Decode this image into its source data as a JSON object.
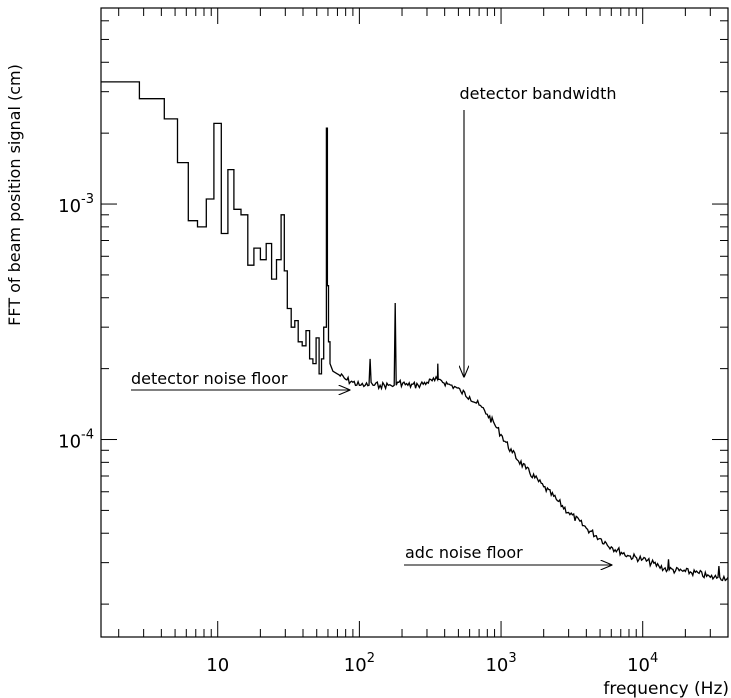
{
  "chart_data": {
    "type": "line",
    "title": "",
    "xlabel": "frequency (Hz)",
    "ylabel": "FFT of beam position signal (cm)",
    "x_scale": "log",
    "y_scale": "log",
    "xlim": [
      1.5,
      40000
    ],
    "ylim": [
      1.45e-05,
      0.0068
    ],
    "grid": false,
    "x_ticks": [
      {
        "value": 10,
        "base": "10",
        "exp": ""
      },
      {
        "value": 100,
        "base": "10",
        "exp": "2"
      },
      {
        "value": 1000,
        "base": "10",
        "exp": "3"
      },
      {
        "value": 10000,
        "base": "10",
        "exp": "4"
      }
    ],
    "y_ticks": [
      {
        "value": 0.001,
        "base": "10",
        "exp": "-3"
      },
      {
        "value": 0.0001,
        "base": "10",
        "exp": "-4"
      }
    ],
    "series": [
      {
        "x": [
          1.5,
          2.8,
          2.8,
          4.2,
          4.2,
          5.2,
          5.2,
          6.2,
          6.2,
          7.2,
          7.2,
          8.3,
          8.3,
          9.4,
          9.4,
          10.6,
          10.6,
          11.8,
          11.8,
          13.0,
          13.0,
          14.6,
          14.6,
          16.3,
          16.3,
          18.0,
          18.0,
          20.0,
          20.0,
          22.0,
          22.0,
          24.0,
          24.0,
          26.0,
          26.0,
          28.0,
          28.0,
          29.5,
          29.5,
          31.0,
          31.0,
          33.0,
          33.0,
          35.0,
          35.0,
          37.0,
          37.0,
          39.5,
          39.5,
          42.0,
          42.0,
          44.5,
          44.5,
          47.0,
          47.0,
          49.5,
          49.5,
          52.0,
          52.0,
          54.0,
          54.0,
          56.0,
          56.0,
          58.5,
          58.5,
          59.5,
          59.5,
          60.5,
          60.5,
          62.0,
          62.0,
          65.0,
          70,
          80,
          90,
          100,
          110,
          117,
          119,
          121,
          125,
          140,
          160,
          176,
          179,
          182,
          190,
          220,
          260,
          300,
          340,
          356,
          358,
          360,
          380,
          420,
          470,
          520,
          600,
          700,
          800,
          900,
          1000,
          1200,
          1500,
          2000,
          2500,
          3000,
          4000,
          5000,
          6000,
          8000,
          10000,
          13000,
          15000,
          15200,
          15400,
          20000,
          25000,
          30000,
          34000,
          34500,
          35000,
          40000
        ],
        "y": [
          0.0033,
          0.0033,
          0.0028,
          0.0028,
          0.0023,
          0.0023,
          0.0015,
          0.0015,
          0.00085,
          0.00085,
          0.0008,
          0.0008,
          0.00105,
          0.00105,
          0.0022,
          0.0022,
          0.00075,
          0.00075,
          0.0014,
          0.0014,
          0.00095,
          0.00095,
          0.0009,
          0.0009,
          0.00055,
          0.00055,
          0.00065,
          0.00065,
          0.00058,
          0.00058,
          0.00068,
          0.00068,
          0.00048,
          0.00048,
          0.00058,
          0.00058,
          0.0009,
          0.0009,
          0.00052,
          0.00052,
          0.00036,
          0.00036,
          0.0003,
          0.0003,
          0.00032,
          0.00032,
          0.00026,
          0.00026,
          0.00025,
          0.00025,
          0.00029,
          0.00029,
          0.00022,
          0.00022,
          0.00021,
          0.00021,
          0.00027,
          0.00027,
          0.00019,
          0.00019,
          0.00022,
          0.00022,
          0.0003,
          0.0003,
          0.0021,
          0.0021,
          0.00045,
          0.00045,
          0.00026,
          0.00026,
          0.00021,
          0.000195,
          0.00019,
          0.00018,
          0.000175,
          0.00017,
          0.00017,
          0.00017,
          0.00022,
          0.000175,
          0.00017,
          0.00017,
          0.00017,
          0.00017,
          0.00038,
          0.00017,
          0.000175,
          0.00017,
          0.00017,
          0.000175,
          0.000178,
          0.00018,
          0.00021,
          0.00018,
          0.000178,
          0.000172,
          0.000168,
          0.00016,
          0.000152,
          0.00014,
          0.000128,
          0.000116,
          0.000105,
          8.8e-05,
          7.5e-05,
          6.3e-05,
          5.5e-05,
          4.9e-05,
          4.2e-05,
          3.8e-05,
          3.5e-05,
          3.2e-05,
          3.1e-05,
          2.9e-05,
          2.8e-05,
          3.1e-05,
          2.8e-05,
          2.75e-05,
          2.7e-05,
          2.6e-05,
          2.6e-05,
          2.9e-05,
          2.6e-05,
          2.6e-05
        ]
      }
    ],
    "annotations": [
      {
        "text": "detector bandwidth",
        "arrow_to": [
          520,
          0.000185
        ],
        "direction": "down"
      },
      {
        "text": "detector noise floor",
        "arrow_to": [
          85,
          0.000178
        ],
        "direction": "right"
      },
      {
        "text": "adc noise floor",
        "arrow_to": [
          6000,
          2.95e-05
        ],
        "direction": "right"
      }
    ]
  }
}
